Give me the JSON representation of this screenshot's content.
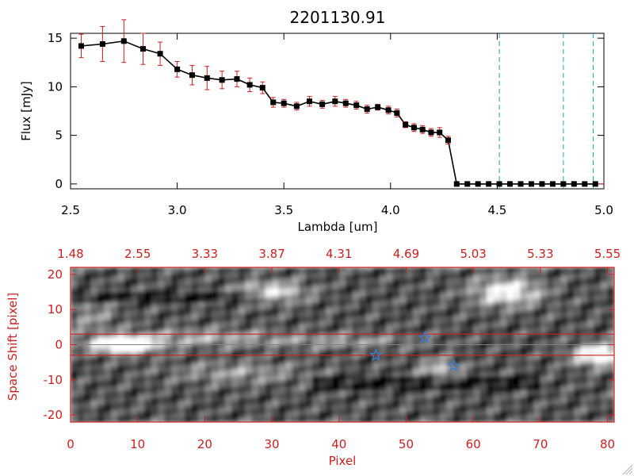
{
  "figure": {
    "title": "2201130.91"
  },
  "chart_data": [
    {
      "type": "line",
      "xlabel": "Lambda [um]",
      "ylabel": "Flux [mJy]",
      "xlim": [
        2.5,
        5.0
      ],
      "ylim": [
        -0.5,
        15.5
      ],
      "xticks": [
        "2.5",
        "3.0",
        "3.5",
        "4.0",
        "4.5",
        "5.0"
      ],
      "yticks": [
        "0",
        "5",
        "10",
        "15"
      ],
      "line_color": "#000000",
      "marker_color": "#000000",
      "error_color": "#cc2020",
      "series": [
        {
          "x": [
            2.55,
            2.65,
            2.75,
            2.84,
            2.92,
            3.0,
            3.07,
            3.14,
            3.21,
            3.28,
            3.34,
            3.4,
            3.45,
            3.5,
            3.56,
            3.62,
            3.68,
            3.74,
            3.79,
            3.84,
            3.89,
            3.94,
            3.99,
            4.03,
            4.07,
            4.11,
            4.15,
            4.19,
            4.23,
            4.27,
            4.31,
            4.36,
            4.41,
            4.46,
            4.51,
            4.56,
            4.61,
            4.66,
            4.71,
            4.76,
            4.81,
            4.86,
            4.91,
            4.96
          ],
          "y": [
            14.2,
            14.4,
            14.7,
            13.9,
            13.4,
            11.8,
            11.2,
            10.9,
            10.7,
            10.8,
            10.2,
            9.9,
            8.4,
            8.3,
            8.0,
            8.5,
            8.2,
            8.5,
            8.3,
            8.1,
            7.7,
            7.9,
            7.6,
            7.3,
            6.1,
            5.8,
            5.6,
            5.3,
            5.3,
            4.5,
            0,
            0,
            0,
            0,
            0,
            0,
            0,
            0,
            0,
            0,
            0,
            0,
            0,
            0
          ],
          "yerr": [
            1.2,
            1.8,
            2.2,
            1.6,
            1.2,
            0.8,
            1.0,
            1.2,
            0.9,
            0.8,
            0.7,
            0.6,
            0.5,
            0.4,
            0.4,
            0.5,
            0.4,
            0.5,
            0.4,
            0.4,
            0.4,
            0.3,
            0.4,
            0.4,
            0.3,
            0.4,
            0.4,
            0.4,
            0.5,
            0.4,
            0,
            0,
            0,
            0,
            0,
            0,
            0,
            0,
            0,
            0,
            0,
            0,
            0,
            0
          ]
        }
      ],
      "vlines": {
        "x": [
          4.51,
          4.81,
          4.95
        ],
        "color": "#20a0b0",
        "style": "dashed"
      },
      "hline": {
        "y": 0,
        "color": "#cc2020"
      }
    },
    {
      "type": "heatmap",
      "xlabel": "Pixel",
      "ylabel": "Space Shift [pixel]",
      "xlim": [
        0,
        81
      ],
      "ylim": [
        -22,
        22
      ],
      "xticks": [
        "0",
        "10",
        "20",
        "30",
        "40",
        "50",
        "60",
        "70",
        "80"
      ],
      "yticks": [
        "-20",
        "-10",
        "0",
        "10",
        "20"
      ],
      "top_axis_ticks": [
        "1.48",
        "2.55",
        "3.33",
        "3.87",
        "4.31",
        "4.69",
        "5.03",
        "5.33",
        "5.55"
      ],
      "axis_color": "#cc2020",
      "colormap": "grayscale",
      "extraction_band": {
        "y": [
          -3,
          3
        ],
        "color": "#cc2020"
      },
      "center_line": {
        "y": 0,
        "color": "#808080"
      },
      "star_markers": {
        "color": "#3a7fd0",
        "points": [
          {
            "x": 45.5,
            "y": -3
          },
          {
            "x": 52.8,
            "y": 2
          },
          {
            "x": 57.1,
            "y": -6
          }
        ]
      }
    }
  ]
}
